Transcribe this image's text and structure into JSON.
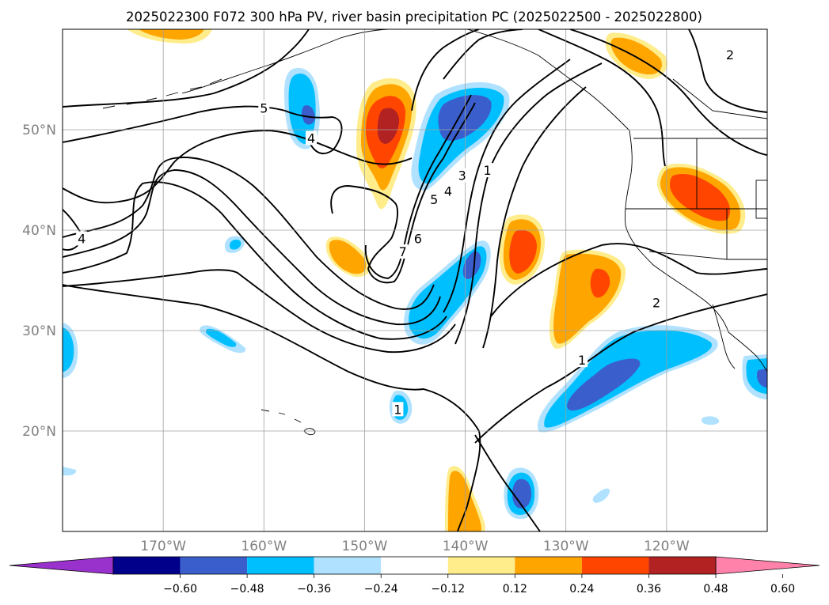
{
  "title": "2025022300 F072 300 hPa PV, river basin precipitation PC (2025022500 - 2025022800)",
  "map": {
    "lat_ticks": [
      {
        "label": "50°N",
        "value": 50
      },
      {
        "label": "40°N",
        "value": 40
      },
      {
        "label": "30°N",
        "value": 30
      },
      {
        "label": "20°N",
        "value": 20
      }
    ],
    "lon_ticks": [
      {
        "label": "170°W",
        "value": -170
      },
      {
        "label": "160°W",
        "value": -160
      },
      {
        "label": "150°W",
        "value": -150
      },
      {
        "label": "140°W",
        "value": -140
      },
      {
        "label": "130°W",
        "value": -130
      },
      {
        "label": "120°W",
        "value": -120
      }
    ],
    "extent": {
      "lon_min": -180,
      "lon_max": -110,
      "lat_min": 10,
      "lat_max": 60
    },
    "contour_labels": [
      {
        "text": "5",
        "lon": -160.0,
        "lat": 52.1
      },
      {
        "text": "4",
        "lon": -155.3,
        "lat": 49.1
      },
      {
        "text": "4",
        "lon": -178.1,
        "lat": 39.1
      },
      {
        "text": "7",
        "lon": -146.2,
        "lat": 37.8
      },
      {
        "text": "6",
        "lon": -144.7,
        "lat": 39.1
      },
      {
        "text": "5",
        "lon": -143.1,
        "lat": 43.0
      },
      {
        "text": "4",
        "lon": -141.7,
        "lat": 43.8
      },
      {
        "text": "3",
        "lon": -140.3,
        "lat": 45.4
      },
      {
        "text": "1",
        "lon": -137.8,
        "lat": 45.9
      },
      {
        "text": "2",
        "lon": -113.7,
        "lat": 57.4
      },
      {
        "text": "2",
        "lon": -121.0,
        "lat": 32.7
      },
      {
        "text": "1",
        "lon": -128.4,
        "lat": 27.0
      },
      {
        "text": "1",
        "lon": -146.7,
        "lat": 22.1
      }
    ]
  },
  "colorbar": {
    "ticks": [
      "−0.60",
      "−0.48",
      "−0.36",
      "−0.24",
      "−0.12",
      "0.12",
      "0.24",
      "0.36",
      "0.48",
      "0.60"
    ],
    "colors": [
      "#9932cc",
      "#00008b",
      "#3a5fcd",
      "#00bfff",
      "#b0e2ff",
      "#ffffff",
      "#ffec8b",
      "#ffa500",
      "#ff4500",
      "#b22222",
      "#ff82ab"
    ]
  }
}
